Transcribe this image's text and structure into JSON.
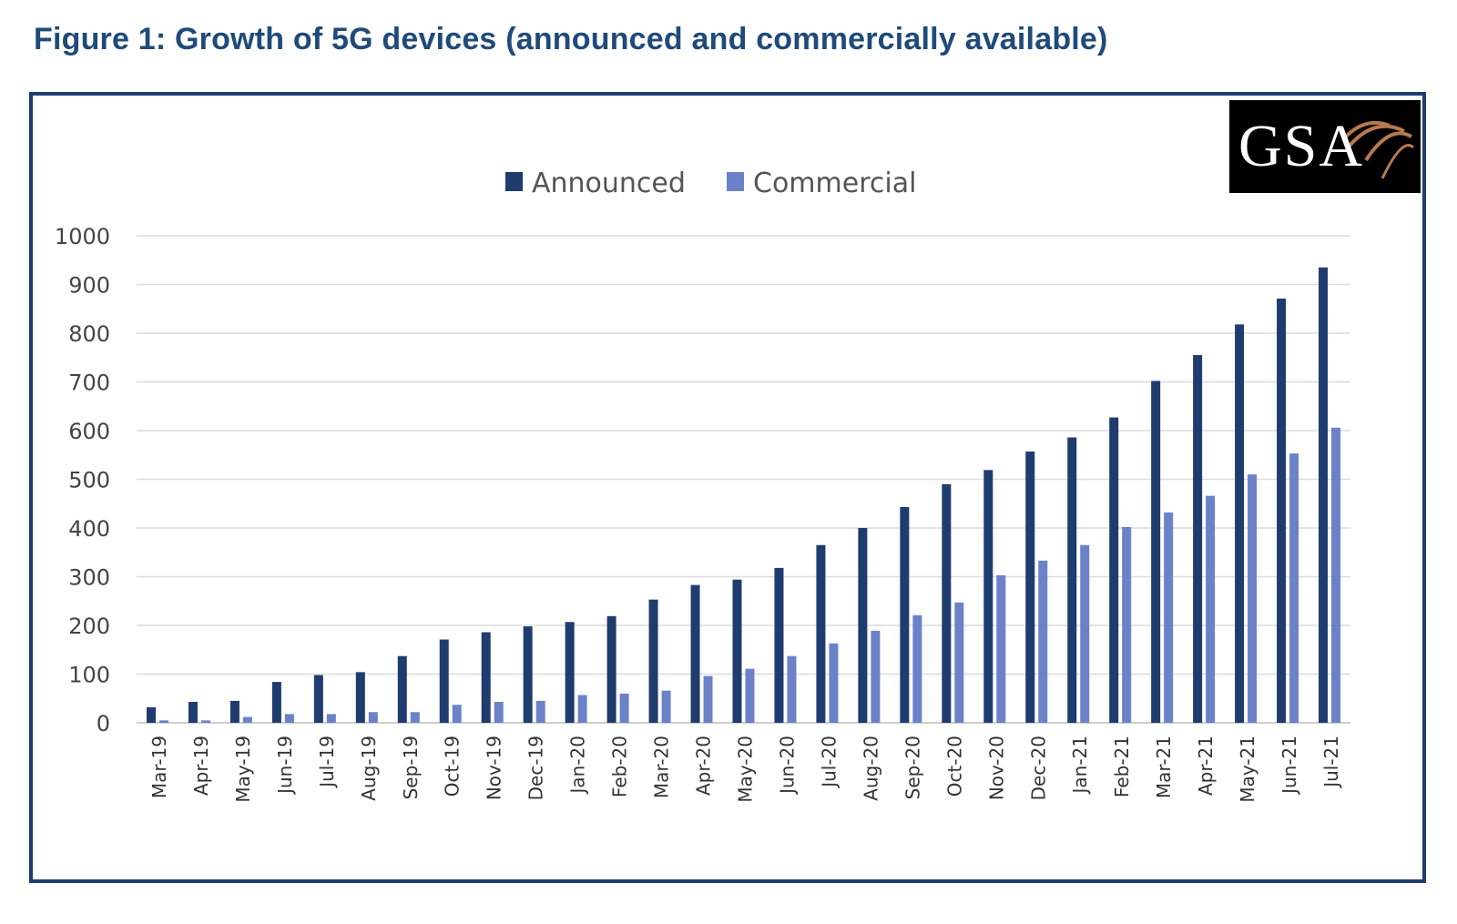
{
  "figure": {
    "title": "Figure 1: Growth of 5G devices (announced and commercially available)"
  },
  "logo": {
    "text": "GSA"
  },
  "colors": {
    "announced": "#1f3c6e",
    "commercial": "#6b82c8",
    "frame": "#1f3c6e",
    "title": "#1f4a7a",
    "grid": "#dcdcdc"
  },
  "chart_data": {
    "type": "bar",
    "title": "",
    "xlabel": "",
    "ylabel": "",
    "ylim": [
      0,
      1000
    ],
    "yticks": [
      0,
      100,
      200,
      300,
      400,
      500,
      600,
      700,
      800,
      900,
      1000
    ],
    "grid": true,
    "legend_position": "top-center",
    "categories": [
      "Mar-19",
      "Apr-19",
      "May-19",
      "Jun-19",
      "Jul-19",
      "Aug-19",
      "Sep-19",
      "Oct-19",
      "Nov-19",
      "Dec-19",
      "Jan-20",
      "Feb-20",
      "Mar-20",
      "Apr-20",
      "May-20",
      "Jun-20",
      "Jul-20",
      "Aug-20",
      "Sep-20",
      "Oct-20",
      "Nov-20",
      "Dec-20",
      "Jan-21",
      "Feb-21",
      "Mar-21",
      "Apr-21",
      "May-21",
      "Jun-21",
      "Jul-21"
    ],
    "series": [
      {
        "name": "Announced",
        "color": "#1f3c6e",
        "values": [
          32,
          43,
          45,
          84,
          98,
          104,
          137,
          171,
          186,
          198,
          207,
          219,
          253,
          283,
          294,
          318,
          365,
          400,
          443,
          490,
          519,
          557,
          586,
          627,
          702,
          755,
          818,
          871,
          935
        ]
      },
      {
        "name": "Commercial",
        "color": "#6b82c8",
        "values": [
          5,
          5,
          12,
          18,
          18,
          22,
          22,
          37,
          43,
          45,
          57,
          60,
          66,
          96,
          111,
          137,
          163,
          189,
          221,
          247,
          303,
          333,
          365,
          402,
          432,
          466,
          510,
          553,
          606
        ]
      }
    ]
  }
}
